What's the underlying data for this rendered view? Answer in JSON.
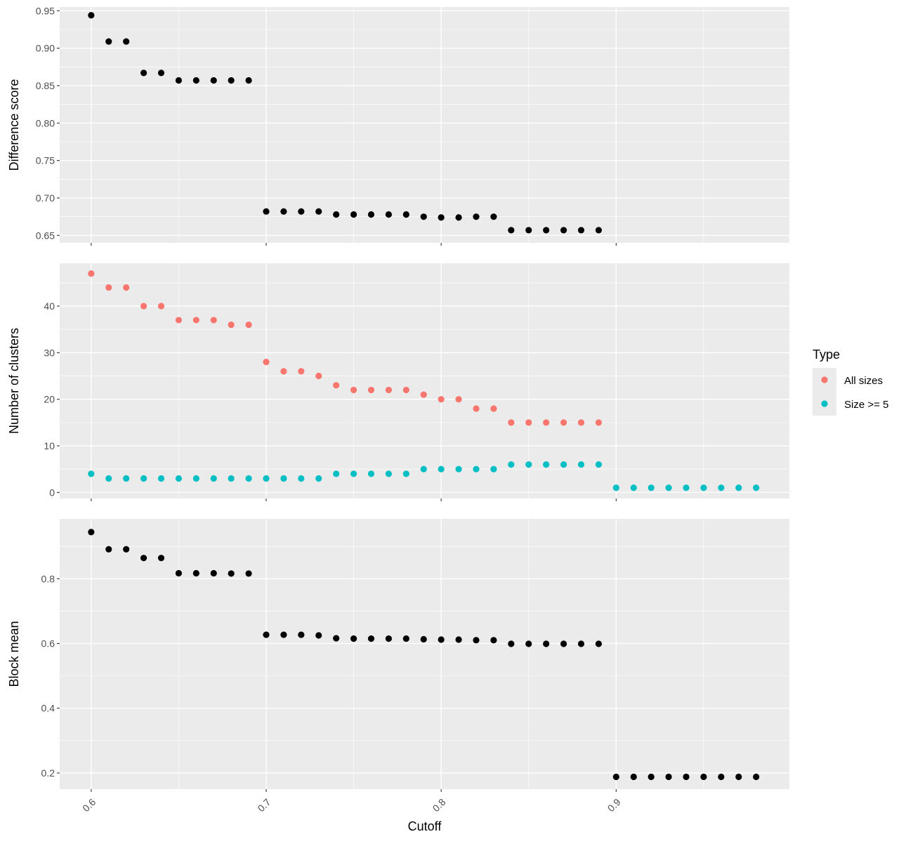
{
  "chart_data": [
    {
      "type": "scatter",
      "ylabel": "Difference score",
      "ylim": [
        0.64,
        0.955
      ],
      "yticks": [
        0.65,
        0.7,
        0.75,
        0.8,
        0.85,
        0.9,
        0.95
      ],
      "ytick_labels": [
        "0.65",
        "0.70",
        "0.75",
        "0.80",
        "0.85",
        "0.90",
        "0.95"
      ],
      "series": [
        {
          "color": "#000000",
          "x": [
            0.6,
            0.61,
            0.62,
            0.63,
            0.64,
            0.65,
            0.66,
            0.67,
            0.68,
            0.69,
            0.7,
            0.71,
            0.72,
            0.73,
            0.74,
            0.75,
            0.76,
            0.77,
            0.78,
            0.79,
            0.8,
            0.81,
            0.82,
            0.83,
            0.84,
            0.85,
            0.86,
            0.87,
            0.88,
            0.89
          ],
          "y": [
            0.944,
            0.909,
            0.909,
            0.867,
            0.867,
            0.857,
            0.857,
            0.857,
            0.857,
            0.857,
            0.682,
            0.682,
            0.682,
            0.682,
            0.678,
            0.678,
            0.678,
            0.678,
            0.678,
            0.675,
            0.674,
            0.674,
            0.675,
            0.675,
            0.657,
            0.657,
            0.657,
            0.657,
            0.657,
            0.657
          ]
        }
      ]
    },
    {
      "type": "scatter",
      "ylabel": "Number of clusters",
      "ylim": [
        -1.3,
        49.2
      ],
      "yticks": [
        0,
        10,
        20,
        30,
        40
      ],
      "ytick_labels": [
        "0",
        "10",
        "20",
        "30",
        "40"
      ],
      "legend": {
        "title": "Type",
        "position": "right",
        "entries": [
          "All sizes",
          "Size >= 5"
        ]
      },
      "series": [
        {
          "name": "All sizes",
          "color": "#f8766d",
          "x": [
            0.6,
            0.61,
            0.62,
            0.63,
            0.64,
            0.65,
            0.66,
            0.67,
            0.68,
            0.69,
            0.7,
            0.71,
            0.72,
            0.73,
            0.74,
            0.75,
            0.76,
            0.77,
            0.78,
            0.79,
            0.8,
            0.81,
            0.82,
            0.83,
            0.84,
            0.85,
            0.86,
            0.87,
            0.88,
            0.89
          ],
          "y": [
            47,
            44,
            44,
            40,
            40,
            37,
            37,
            37,
            36,
            36,
            28,
            26,
            26,
            25,
            23,
            22,
            22,
            22,
            22,
            21,
            20,
            20,
            18,
            18,
            15,
            15,
            15,
            15,
            15,
            15
          ]
        },
        {
          "name": "Size >= 5",
          "color": "#00bfc4",
          "x": [
            0.6,
            0.61,
            0.62,
            0.63,
            0.64,
            0.65,
            0.66,
            0.67,
            0.68,
            0.69,
            0.7,
            0.71,
            0.72,
            0.73,
            0.74,
            0.75,
            0.76,
            0.77,
            0.78,
            0.79,
            0.8,
            0.81,
            0.82,
            0.83,
            0.84,
            0.85,
            0.86,
            0.87,
            0.88,
            0.89,
            0.9,
            0.91,
            0.92,
            0.93,
            0.94,
            0.95,
            0.96,
            0.97,
            0.98
          ],
          "y": [
            4,
            3,
            3,
            3,
            3,
            3,
            3,
            3,
            3,
            3,
            3,
            3,
            3,
            3,
            4,
            4,
            4,
            4,
            4,
            5,
            5,
            5,
            5,
            5,
            6,
            6,
            6,
            6,
            6,
            6,
            1,
            1,
            1,
            1,
            1,
            1,
            1,
            1,
            1
          ]
        }
      ]
    },
    {
      "type": "scatter",
      "ylabel": "Block mean",
      "xlabel": "Cutoff",
      "ylim": [
        0.15,
        0.985
      ],
      "yticks": [
        0.2,
        0.4,
        0.6,
        0.8
      ],
      "ytick_labels": [
        "0.2",
        "0.4",
        "0.6",
        "0.8"
      ],
      "series": [
        {
          "color": "#000000",
          "x": [
            0.6,
            0.61,
            0.62,
            0.63,
            0.64,
            0.65,
            0.66,
            0.67,
            0.68,
            0.69,
            0.7,
            0.71,
            0.72,
            0.73,
            0.74,
            0.75,
            0.76,
            0.77,
            0.78,
            0.79,
            0.8,
            0.81,
            0.82,
            0.83,
            0.84,
            0.85,
            0.86,
            0.87,
            0.88,
            0.89,
            0.9,
            0.91,
            0.92,
            0.93,
            0.94,
            0.95,
            0.96,
            0.97,
            0.98
          ],
          "y": [
            0.944,
            0.891,
            0.891,
            0.864,
            0.864,
            0.817,
            0.817,
            0.817,
            0.816,
            0.816,
            0.627,
            0.627,
            0.627,
            0.625,
            0.616,
            0.615,
            0.615,
            0.615,
            0.615,
            0.613,
            0.612,
            0.612,
            0.61,
            0.61,
            0.599,
            0.599,
            0.599,
            0.599,
            0.599,
            0.599,
            0.188,
            0.188,
            0.188,
            0.188,
            0.188,
            0.188,
            0.188,
            0.188,
            0.188
          ]
        }
      ]
    }
  ],
  "x_axis": {
    "label": "Cutoff",
    "xlim": [
      0.582,
      0.999
    ],
    "ticks": [
      0.6,
      0.7,
      0.8,
      0.9
    ],
    "tick_labels": [
      "0.6",
      "0.7",
      "0.8",
      "0.9"
    ]
  }
}
